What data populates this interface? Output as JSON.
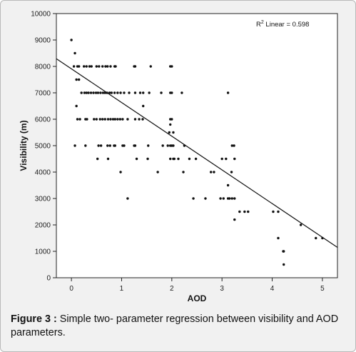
{
  "caption": {
    "label": "Figure 3 :",
    "text": "Simple two- parameter regression between visibility and AOD parameters."
  },
  "chart_data": {
    "type": "scatter",
    "xlabel": "AOD",
    "ylabel": "Visibility (m)",
    "xlim": [
      -0.3,
      5.3
    ],
    "ylim": [
      0,
      10000
    ],
    "x_ticks": [
      0,
      1,
      2,
      3,
      4,
      5
    ],
    "y_ticks": [
      0,
      1000,
      2000,
      3000,
      4000,
      5000,
      6000,
      7000,
      8000,
      9000,
      10000
    ],
    "grid": false,
    "annotation": {
      "r2_label": "R",
      "r2_sup": "2",
      "r2_suffix": " Linear = 0.598"
    },
    "regression_line": {
      "x": [
        -0.3,
        5.3
      ],
      "y": [
        8290,
        1150
      ]
    },
    "points": {
      "x": [
        0.0,
        0.07,
        0.05,
        0.12,
        0.15,
        0.25,
        0.3,
        0.36,
        0.4,
        0.5,
        0.55,
        0.62,
        0.68,
        0.72,
        0.78,
        0.86,
        0.88,
        1.25,
        1.27,
        1.58,
        1.97,
        2.0,
        0.1,
        0.15,
        0.2,
        0.26,
        0.3,
        0.34,
        0.39,
        0.44,
        0.49,
        0.53,
        0.58,
        0.63,
        0.67,
        0.71,
        0.76,
        0.8,
        0.86,
        0.92,
        0.98,
        1.05,
        1.15,
        1.27,
        1.37,
        1.43,
        1.55,
        1.79,
        1.97,
        2.0,
        2.2,
        3.12,
        0.1,
        1.43,
        0.12,
        0.17,
        0.28,
        0.31,
        0.45,
        0.5,
        0.57,
        0.62,
        0.67,
        0.73,
        0.78,
        0.83,
        0.87,
        0.92,
        0.97,
        1.02,
        1.12,
        1.27,
        1.35,
        1.42,
        1.97,
        2.0,
        1.97,
        2.03,
        1.95,
        0.07,
        0.28,
        0.54,
        0.59,
        0.72,
        0.77,
        0.85,
        0.87,
        1.02,
        1.05,
        1.25,
        1.27,
        1.53,
        1.82,
        1.92,
        1.97,
        2.0,
        2.03,
        2.25,
        3.2,
        3.24,
        0.52,
        0.73,
        1.3,
        1.52,
        1.97,
        2.03,
        2.05,
        2.13,
        2.35,
        2.48,
        3.0,
        3.08,
        3.25,
        0.98,
        1.72,
        2.23,
        2.78,
        2.84,
        3.19,
        3.12,
        1.12,
        2.43,
        2.67,
        2.97,
        3.03,
        3.12,
        3.15,
        3.2,
        3.25,
        3.35,
        3.45,
        3.52,
        4.02,
        4.12,
        3.25,
        4.57,
        4.12,
        4.87,
        5.0,
        4.22,
        4.23,
        4.23
      ],
      "y": [
        9000,
        8500,
        8000,
        8000,
        8000,
        8000,
        8000,
        8000,
        8000,
        8000,
        8000,
        8000,
        8000,
        8000,
        8000,
        8000,
        8000,
        8000,
        8000,
        8000,
        8000,
        8000,
        7500,
        7500,
        7000,
        7000,
        7000,
        7000,
        7000,
        7000,
        7000,
        7000,
        7000,
        7000,
        7000,
        7000,
        7000,
        7000,
        7000,
        7000,
        7000,
        7000,
        7000,
        7000,
        7000,
        7000,
        7000,
        7000,
        7000,
        7000,
        7000,
        7000,
        6500,
        6500,
        6000,
        6000,
        6000,
        6000,
        6000,
        6000,
        6000,
        6000,
        6000,
        6000,
        6000,
        6000,
        6000,
        6000,
        6000,
        6000,
        6000,
        6000,
        6000,
        6000,
        6000,
        6000,
        5800,
        5500,
        5500,
        5000,
        5000,
        5000,
        5000,
        5000,
        5000,
        5000,
        5000,
        5000,
        5000,
        5000,
        5000,
        5000,
        5000,
        5000,
        5000,
        5000,
        5000,
        5000,
        5000,
        5000,
        4500,
        4500,
        4500,
        4500,
        4500,
        4500,
        4500,
        4500,
        4500,
        4500,
        4500,
        4500,
        4500,
        4000,
        4000,
        4000,
        4000,
        4000,
        4000,
        3500,
        3000,
        3000,
        3000,
        3000,
        3000,
        3000,
        3000,
        3000,
        3000,
        2500,
        2500,
        2500,
        2500,
        2500,
        2200,
        2000,
        1500,
        1500,
        1500,
        1000,
        1000,
        500
      ]
    }
  }
}
